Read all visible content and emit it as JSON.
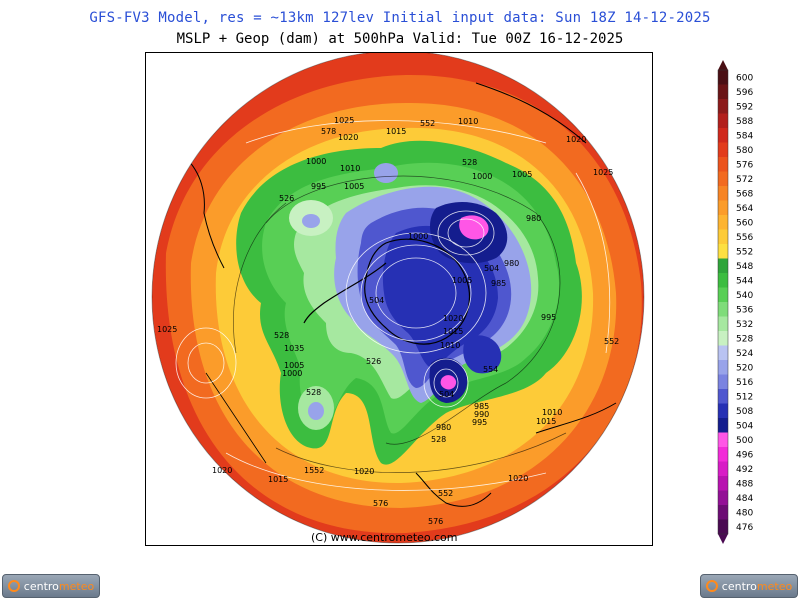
{
  "header": {
    "line1": "GFS-FV3 Model, res = ~13km 127lev    Initial input data: Sun 18Z 14-12-2025",
    "line2": "MSLP + Geop (dam) at 500hPa  Valid: Tue 00Z 16-12-2025"
  },
  "map": {
    "watermark": "(C) www.centrometeo.com",
    "pressure_labels": [
      "1025",
      "1020",
      "578",
      "1015",
      "552",
      "1010",
      "1020",
      "1025",
      "1000",
      "1010",
      "528",
      "1000",
      "1005",
      "995",
      "1005",
      "526",
      "980",
      "1000",
      "1005",
      "504",
      "980",
      "985",
      "995",
      "1020",
      "1015",
      "1010",
      "552",
      "504",
      "554",
      "528",
      "1035",
      "1005",
      "1000",
      "526",
      "528",
      "504",
      "985",
      "990",
      "995",
      "1010",
      "1015",
      "980",
      "528",
      "1020",
      "1015",
      "1552",
      "1020",
      "1020",
      "552",
      "576",
      "576",
      "1025"
    ],
    "colors": {
      "land_outline": "#000000",
      "isobars": "#ffffff"
    }
  },
  "colorbar": {
    "levels": [
      "600",
      "596",
      "592",
      "588",
      "584",
      "580",
      "576",
      "572",
      "568",
      "564",
      "560",
      "556",
      "552",
      "548",
      "544",
      "540",
      "536",
      "532",
      "528",
      "524",
      "520",
      "516",
      "512",
      "508",
      "504",
      "500",
      "496",
      "492",
      "488",
      "484",
      "480",
      "476"
    ],
    "colors": [
      "#4a0f14",
      "#6a1416",
      "#8c1a1a",
      "#b21f1c",
      "#d0281c",
      "#e23b1c",
      "#ec531d",
      "#f26a20",
      "#f78424",
      "#fb9c2a",
      "#fdb431",
      "#fdcb38",
      "#fde041",
      "#2fa53a",
      "#3cbd40",
      "#58cf55",
      "#7fdc7a",
      "#a6e8a0",
      "#c8f1c2",
      "#b9c3f2",
      "#98a3ea",
      "#7a83e1",
      "#4f57cf",
      "#2630b4",
      "#141d8e",
      "#ff56e6",
      "#f22bd8",
      "#d81cc6",
      "#b812b0",
      "#931096",
      "#6c0c74",
      "#4a0a52"
    ]
  },
  "logos": {
    "left": {
      "text_a": "centro",
      "text_b": "meteo"
    },
    "right": {
      "text_a": "centro",
      "text_b": "meteo"
    }
  }
}
